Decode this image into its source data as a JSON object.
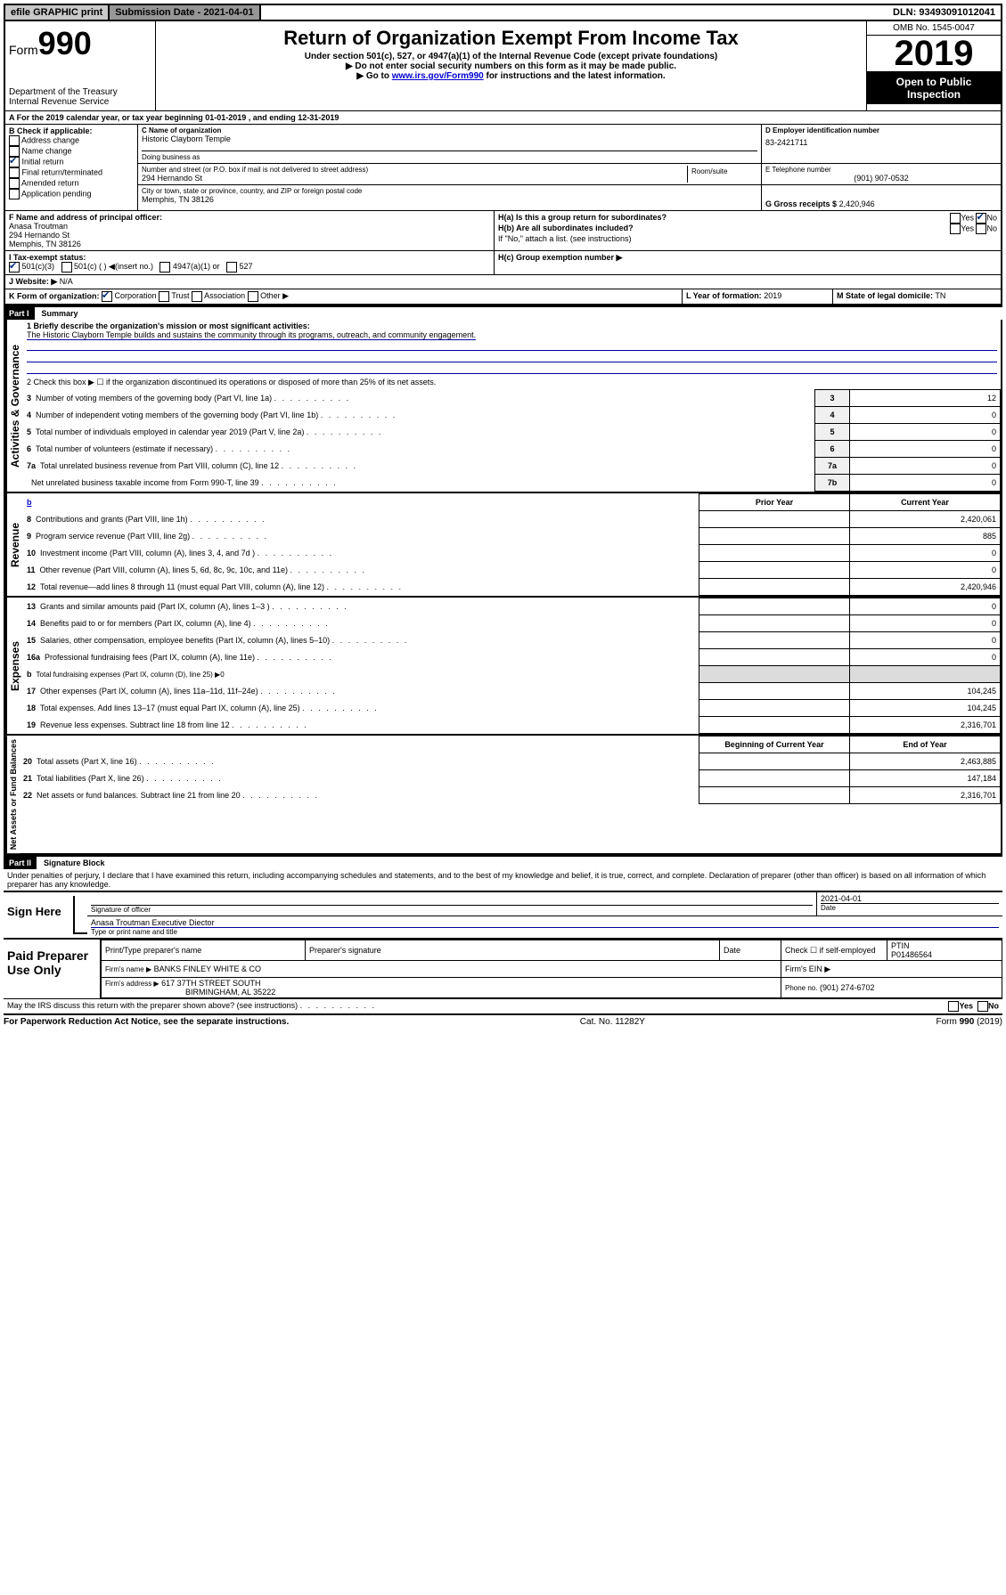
{
  "top": {
    "efile": "efile GRAPHIC print",
    "submission": "Submission Date - 2021-04-01",
    "dln": "DLN: 93493091012041"
  },
  "header": {
    "form_prefix": "Form",
    "form_number": "990",
    "dept": "Department of the Treasury",
    "irs": "Internal Revenue Service",
    "title": "Return of Organization Exempt From Income Tax",
    "subtitle": "Under section 501(c), 527, or 4947(a)(1) of the Internal Revenue Code (except private foundations)",
    "note1": "Do not enter social security numbers on this form as it may be made public.",
    "note2_pre": "Go to ",
    "note2_link": "www.irs.gov/Form990",
    "note2_post": " for instructions and the latest information.",
    "omb": "OMB No. 1545-0047",
    "year": "2019",
    "open": "Open to Public Inspection"
  },
  "period": {
    "line": "For the 2019 calendar year, or tax year beginning 01-01-2019   , and ending 12-31-2019"
  },
  "boxB": {
    "title": "B Check if applicable:",
    "items": [
      "Address change",
      "Name change",
      "Initial return",
      "Final return/terminated",
      "Amended return",
      "Application pending"
    ],
    "checked_index": 2
  },
  "boxC": {
    "label": "C Name of organization",
    "name": "Historic Clayborn Temple",
    "dba_label": "Doing business as",
    "addr_label": "Number and street (or P.O. box if mail is not delivered to street address)",
    "room": "Room/suite",
    "addr": "294 Hernando St",
    "city_label": "City or town, state or province, country, and ZIP or foreign postal code",
    "city": "Memphis, TN  38126"
  },
  "boxD": {
    "label": "D Employer identification number",
    "value": "83-2421711"
  },
  "boxE": {
    "label": "E Telephone number",
    "value": "(901) 907-0532"
  },
  "boxG": {
    "label": "G Gross receipts $",
    "value": "2,420,946"
  },
  "boxF": {
    "label": "F  Name and address of principal officer:",
    "name": "Anasa Troutman",
    "addr1": "294 Hernando St",
    "addr2": "Memphis, TN  38126"
  },
  "boxH": {
    "a_label": "H(a)  Is this a group return for subordinates?",
    "a_yes": "Yes",
    "a_no": "No",
    "b_label": "H(b)  Are all subordinates included?",
    "b_note": "If \"No,\" attach a list. (see instructions)",
    "c_label": "H(c)  Group exemption number ▶"
  },
  "boxI": {
    "label": "I    Tax-exempt status:",
    "opts": [
      "501(c)(3)",
      "501(c) (  ) ◀(insert no.)",
      "4947(a)(1) or",
      "527"
    ]
  },
  "boxJ": {
    "label": "J    Website: ▶",
    "value": "N/A"
  },
  "boxK": {
    "label": "K Form of organization:",
    "opts": [
      "Corporation",
      "Trust",
      "Association",
      "Other ▶"
    ]
  },
  "boxL": {
    "label": "L Year of formation:",
    "value": "2019"
  },
  "boxM": {
    "label": "M State of legal domicile:",
    "value": "TN"
  },
  "part1": {
    "header": "Part I",
    "title": "Summary",
    "side1": "Activities & Governance",
    "side2": "Revenue",
    "side3": "Expenses",
    "side4": "Net Assets or Fund Balances",
    "q1": "1  Briefly describe the organization's mission or most significant activities:",
    "mission": "The Historic Clayborn Temple builds and sustains the community through its programs, outreach, and community engagement.",
    "q2": "2   Check this box ▶ ☐  if the organization discontinued its operations or disposed of more than 25% of its net assets.",
    "lines_gov": [
      {
        "n": "3",
        "t": "Number of voting members of the governing body (Part VI, line 1a)",
        "code": "3",
        "v": "12"
      },
      {
        "n": "4",
        "t": "Number of independent voting members of the governing body (Part VI, line 1b)",
        "code": "4",
        "v": "0"
      },
      {
        "n": "5",
        "t": "Total number of individuals employed in calendar year 2019 (Part V, line 2a)",
        "code": "5",
        "v": "0"
      },
      {
        "n": "6",
        "t": "Total number of volunteers (estimate if necessary)",
        "code": "6",
        "v": "0"
      },
      {
        "n": "7a",
        "t": "Total unrelated business revenue from Part VIII, column (C), line 12",
        "code": "7a",
        "v": "0"
      },
      {
        "n": "",
        "t": "Net unrelated business taxable income from Form 990-T, line 39",
        "code": "7b",
        "v": "0"
      }
    ],
    "col_prior": "Prior Year",
    "col_current": "Current Year",
    "b_link": "b",
    "lines_rev": [
      {
        "n": "8",
        "t": "Contributions and grants (Part VIII, line 1h)",
        "p": "",
        "c": "2,420,061"
      },
      {
        "n": "9",
        "t": "Program service revenue (Part VIII, line 2g)",
        "p": "",
        "c": "885"
      },
      {
        "n": "10",
        "t": "Investment income (Part VIII, column (A), lines 3, 4, and 7d )",
        "p": "",
        "c": "0"
      },
      {
        "n": "11",
        "t": "Other revenue (Part VIII, column (A), lines 5, 6d, 8c, 9c, 10c, and 11e)",
        "p": "",
        "c": "0"
      },
      {
        "n": "12",
        "t": "Total revenue—add lines 8 through 11 (must equal Part VIII, column (A), line 12)",
        "p": "",
        "c": "2,420,946"
      }
    ],
    "lines_exp": [
      {
        "n": "13",
        "t": "Grants and similar amounts paid (Part IX, column (A), lines 1–3 )",
        "p": "",
        "c": "0"
      },
      {
        "n": "14",
        "t": "Benefits paid to or for members (Part IX, column (A), line 4)",
        "p": "",
        "c": "0"
      },
      {
        "n": "15",
        "t": "Salaries, other compensation, employee benefits (Part IX, column (A), lines 5–10)",
        "p": "",
        "c": "0"
      },
      {
        "n": "16a",
        "t": "Professional fundraising fees (Part IX, column (A), line 11e)",
        "p": "",
        "c": "0"
      },
      {
        "n": "b",
        "t": "Total fundraising expenses (Part IX, column (D), line 25) ▶0",
        "p": "grey",
        "c": "grey"
      },
      {
        "n": "17",
        "t": "Other expenses (Part IX, column (A), lines 11a–11d, 11f–24e)",
        "p": "",
        "c": "104,245"
      },
      {
        "n": "18",
        "t": "Total expenses. Add lines 13–17 (must equal Part IX, column (A), line 25)",
        "p": "",
        "c": "104,245"
      },
      {
        "n": "19",
        "t": "Revenue less expenses. Subtract line 18 from line 12",
        "p": "",
        "c": "2,316,701"
      }
    ],
    "col_begin": "Beginning of Current Year",
    "col_end": "End of Year",
    "lines_net": [
      {
        "n": "20",
        "t": "Total assets (Part X, line 16)",
        "p": "",
        "c": "2,463,885"
      },
      {
        "n": "21",
        "t": "Total liabilities (Part X, line 26)",
        "p": "",
        "c": "147,184"
      },
      {
        "n": "22",
        "t": "Net assets or fund balances. Subtract line 21 from line 20",
        "p": "",
        "c": "2,316,701"
      }
    ]
  },
  "part2": {
    "header": "Part II",
    "title": "Signature Block",
    "perjury": "Under penalties of perjury, I declare that I have examined this return, including accompanying schedules and statements, and to the best of my knowledge and belief, it is true, correct, and complete. Declaration of preparer (other than officer) is based on all information of which preparer has any knowledge.",
    "sign_here": "Sign Here",
    "sig_officer": "Signature of officer",
    "date_label": "Date",
    "date_value": "2021-04-01",
    "name_title": "Anasa Troutman  Executive Diector",
    "name_title_label": "Type or print name and title",
    "paid": "Paid Preparer Use Only",
    "prep_name_label": "Print/Type preparer's name",
    "prep_sig_label": "Preparer's signature",
    "check_self": "Check ☐ if self-employed",
    "ptin_label": "PTIN",
    "ptin": "P01486564",
    "firm_name_label": "Firm's name    ▶",
    "firm_name": "BANKS FINLEY WHITE & CO",
    "firm_ein": "Firm's EIN ▶",
    "firm_addr_label": "Firm's address ▶",
    "firm_addr1": "617 37TH STREET SOUTH",
    "firm_addr2": "BIRMINGHAM, AL  35222",
    "phone_label": "Phone no.",
    "phone": "(901) 274-6702",
    "discuss": "May the IRS discuss this return with the preparer shown above? (see instructions)",
    "yes": "Yes",
    "no": "No"
  },
  "footer": {
    "pra": "For Paperwork Reduction Act Notice, see the separate instructions.",
    "cat": "Cat. No. 11282Y",
    "form": "Form 990 (2019)"
  }
}
